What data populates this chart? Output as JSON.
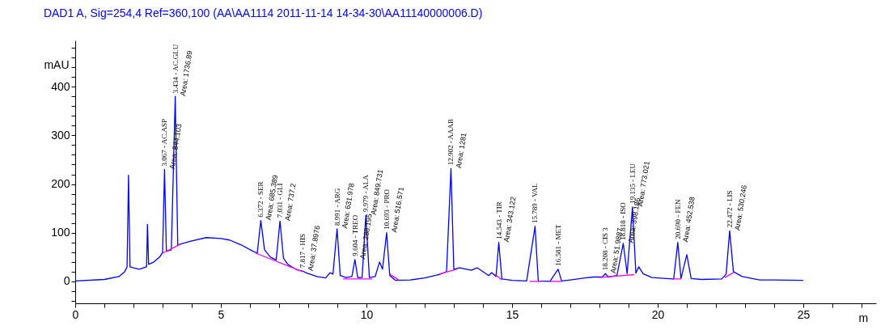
{
  "chart_data": {
    "type": "line",
    "title": "DAD1 A, Sig=254,4 Ref=360,100 (AA\\AA1114 2011-11-14 14-34-30\\AA11140000006.D)",
    "xlabel": "m",
    "ylabel": "mAU",
    "xlim": [
      0,
      27.5
    ],
    "ylim": [
      -45,
      495
    ],
    "xticks": [
      0,
      {
        "value": 1,
        "label": null
      },
      {
        "value": 2,
        "label": null
      },
      {
        "value": 3,
        "label": null
      },
      {
        "value": 4,
        "label": null
      },
      5,
      {
        "value": 6,
        "label": null
      },
      {
        "value": 7,
        "label": null
      },
      {
        "value": 8,
        "label": null
      },
      {
        "value": 9,
        "label": null
      },
      10,
      {
        "value": 11,
        "label": null
      },
      {
        "value": 12,
        "label": null
      },
      {
        "value": 13,
        "label": null
      },
      {
        "value": 14,
        "label": null
      },
      15,
      {
        "value": 16,
        "label": null
      },
      {
        "value": 17,
        "label": null
      },
      {
        "value": 18,
        "label": null
      },
      {
        "value": 19,
        "label": null
      },
      20,
      {
        "value": 21,
        "label": null
      },
      {
        "value": 22,
        "label": null
      },
      {
        "value": 23,
        "label": null
      },
      {
        "value": 24,
        "label": null
      },
      25,
      {
        "value": 26,
        "label": null
      },
      {
        "value": 27,
        "label": null
      }
    ],
    "yticks": [
      {
        "value": -40,
        "label": null
      },
      {
        "value": -20,
        "label": null
      },
      0,
      {
        "value": 20,
        "label": null
      },
      {
        "value": 40,
        "label": null
      },
      {
        "value": 60,
        "label": null
      },
      {
        "value": 80,
        "label": null
      },
      100,
      {
        "value": 120,
        "label": null
      },
      {
        "value": 140,
        "label": null
      },
      {
        "value": 160,
        "label": null
      },
      {
        "value": 180,
        "label": null
      },
      200,
      {
        "value": 220,
        "label": null
      },
      {
        "value": 240,
        "label": null
      },
      {
        "value": 260,
        "label": null
      },
      {
        "value": 280,
        "label": null
      },
      300,
      {
        "value": 320,
        "label": null
      },
      {
        "value": 340,
        "label": null
      },
      {
        "value": 360,
        "label": null
      },
      {
        "value": 380,
        "label": null
      },
      400,
      {
        "value": 420,
        "label": null
      },
      {
        "value": 440,
        "label": null
      },
      {
        "value": 460,
        "label": null
      },
      {
        "value": 480,
        "label": null
      }
    ],
    "grid": false,
    "marker": "none",
    "line_style": "solid",
    "series": [
      {
        "color": "#0000ff",
        "x": [
          0,
          1,
          1.5,
          1.7,
          1.78,
          1.83,
          1.88,
          2.0,
          2.2,
          2.45,
          2.48,
          2.52,
          2.7,
          2.9,
          3.0,
          3.067,
          3.13,
          3.3,
          3.434,
          3.52,
          3.7,
          4.0,
          4.5,
          5.0,
          5.3,
          5.7,
          6.1,
          6.25,
          6.372,
          6.5,
          6.7,
          6.9,
          7.031,
          7.15,
          7.3,
          7.6,
          7.817,
          7.95,
          8.3,
          8.6,
          8.75,
          8.85,
          8.991,
          9.1,
          9.3,
          9.5,
          9.604,
          9.7,
          9.85,
          9.979,
          10.1,
          10.3,
          10.45,
          10.55,
          10.693,
          10.8,
          11.0,
          11.5,
          12.0,
          12.5,
          12.75,
          12.902,
          13.0,
          13.2,
          13.6,
          13.8,
          14.2,
          14.3,
          14.45,
          14.543,
          14.65,
          15.0,
          15.5,
          15.789,
          15.9,
          16.3,
          16.581,
          16.7,
          17.0,
          17.5,
          17.8,
          18.1,
          18.208,
          18.3,
          18.6,
          18.818,
          18.95,
          19.135,
          19.25,
          19.35,
          19.5,
          19.8,
          20.3,
          20.55,
          20.69,
          20.8,
          21.0,
          21.15,
          21.5,
          22.2,
          22.35,
          22.472,
          22.6,
          22.9,
          23.5,
          24,
          25
        ],
        "values": [
          1,
          4,
          10,
          20,
          30,
          218,
          30,
          28,
          25,
          30,
          117,
          35,
          40,
          50,
          60,
          230,
          62,
          65,
          380,
          75,
          78,
          83,
          90,
          88,
          85,
          75,
          62,
          58,
          125,
          65,
          50,
          44,
          124,
          48,
          35,
          24,
          21,
          17,
          10,
          7,
          18,
          15,
          108,
          12,
          8,
          10,
          45,
          8,
          8,
          136,
          8,
          10,
          40,
          25,
          100,
          12,
          2,
          3,
          7,
          14,
          20,
          232,
          25,
          28,
          23,
          28,
          12,
          18,
          10,
          80,
          5,
          2,
          1,
          113,
          1,
          0,
          25,
          1,
          3,
          7,
          9,
          9,
          16,
          9,
          12,
          78,
          16,
          153,
          17,
          30,
          16,
          8,
          6,
          5,
          80,
          6,
          55,
          6,
          4,
          5,
          15,
          104,
          20,
          10,
          3,
          3,
          2
        ]
      },
      {
        "color": "#ff00ff",
        "x": [
          3.0,
          3.6
        ],
        "values": [
          58,
          76
        ]
      },
      {
        "color": "#ff00ff",
        "x": [
          6.2,
          7.8
        ],
        "values": [
          58,
          20
        ]
      },
      {
        "color": "#ff00ff",
        "x": [
          9.2,
          10.2
        ],
        "values": [
          5,
          5
        ]
      },
      {
        "color": "#ff00ff",
        "x": [
          10.8,
          11.1
        ],
        "values": [
          15,
          3
        ]
      },
      {
        "color": "#ff00ff",
        "x": [
          12.5,
          13.1
        ],
        "values": [
          15,
          25
        ]
      },
      {
        "color": "#ff00ff",
        "x": [
          14.4,
          14.65
        ],
        "values": [
          15,
          3
        ]
      },
      {
        "color": "#ff00ff",
        "x": [
          15.6,
          16.0
        ],
        "values": [
          0,
          0
        ]
      },
      {
        "color": "#ff00ff",
        "x": [
          16.3,
          16.7
        ],
        "values": [
          0,
          0
        ]
      },
      {
        "color": "#ff00ff",
        "x": [
          18.0,
          19.2
        ],
        "values": [
          8,
          14
        ]
      },
      {
        "color": "#ff00ff",
        "x": [
          20.5,
          20.8
        ],
        "values": [
          5,
          5
        ]
      },
      {
        "color": "#ff00ff",
        "x": [
          22.3,
          22.6
        ],
        "values": [
          8,
          18
        ]
      }
    ],
    "annotations": [
      {
        "text": "3.067 -  AC.ASP",
        "x": 3.067,
        "y": 230
      },
      {
        "text": "Area: 844.103",
        "x": 3.067,
        "y": 230
      },
      {
        "text": "3.434 -  AC.GLU",
        "x": 3.434,
        "y": 380
      },
      {
        "text": "Area: 1736.89",
        "x": 3.434,
        "y": 380
      },
      {
        "text": "6.372 -  SER",
        "x": 6.372,
        "y": 125
      },
      {
        "text": "Area: 685.389",
        "x": 6.372,
        "y": 125
      },
      {
        "text": "7.031 -  GLI",
        "x": 7.031,
        "y": 124
      },
      {
        "text": "Area: 737.2",
        "x": 7.031,
        "y": 124
      },
      {
        "text": "7.817 -  HIS",
        "x": 7.817,
        "y": 21
      },
      {
        "text": "Area: 37.8976",
        "x": 7.817,
        "y": 21
      },
      {
        "text": "8.991 -  ARG",
        "x": 8.991,
        "y": 108
      },
      {
        "text": "Area: 631.978",
        "x": 8.991,
        "y": 108
      },
      {
        "text": "9.604 -  TREO",
        "x": 9.604,
        "y": 45
      },
      {
        "text": "Area: 288.195",
        "x": 9.604,
        "y": 45
      },
      {
        "text": "9.979 -  ALA",
        "x": 9.979,
        "y": 136
      },
      {
        "text": "Area: 849.731",
        "x": 9.979,
        "y": 136
      },
      {
        "text": "10.693 -  PRO",
        "x": 10.693,
        "y": 100
      },
      {
        "text": "Area: 516.571",
        "x": 10.693,
        "y": 100
      },
      {
        "text": "12.902 -  AAAB",
        "x": 12.902,
        "y": 232
      },
      {
        "text": "Area: 1281",
        "x": 12.902,
        "y": 232
      },
      {
        "text": "14.543 -  TIR",
        "x": 14.543,
        "y": 80
      },
      {
        "text": "Area: 343.122",
        "x": 14.543,
        "y": 80
      },
      {
        "text": "15.789 -  VAL",
        "x": 15.789,
        "y": 113
      },
      {
        "text": "16.581 -  MET",
        "x": 16.581,
        "y": 25
      },
      {
        "text": "18.208 -  CIS 3",
        "x": 18.208,
        "y": 16
      },
      {
        "text": "Area: 51.9887",
        "x": 18.208,
        "y": 16
      },
      {
        "text": "18.818 -  ISO",
        "x": 18.818,
        "y": 78
      },
      {
        "text": "Area: 398.186",
        "x": 18.818,
        "y": 78
      },
      {
        "text": "19.135 -  LEU",
        "x": 19.135,
        "y": 153
      },
      {
        "text": "Area: 773.021",
        "x": 19.135,
        "y": 153
      },
      {
        "text": "20.690 -  FEN",
        "x": 20.69,
        "y": 80
      },
      {
        "text": "Area: 452.538",
        "x": 20.69,
        "y": 80
      },
      {
        "text": "22.472 -  LIS",
        "x": 22.472,
        "y": 104
      },
      {
        "text": "Area: 530.246",
        "x": 22.472,
        "y": 104
      }
    ]
  }
}
